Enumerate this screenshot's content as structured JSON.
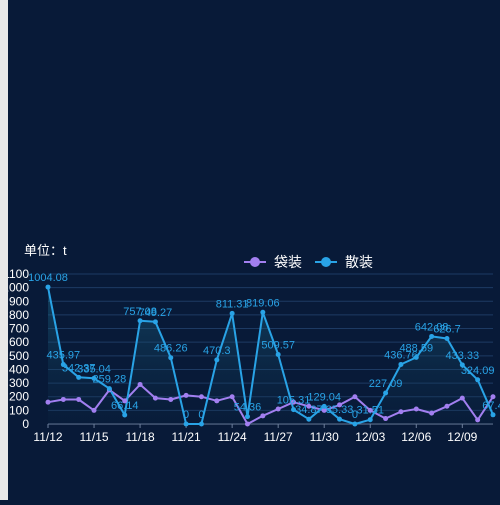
{
  "chart_data": {
    "type": "line",
    "unit_label": "单位：t",
    "ylim": [
      0,
      1100
    ],
    "yticks": [
      0,
      100,
      200,
      300,
      400,
      500,
      600,
      700,
      800,
      900,
      1000,
      1100
    ],
    "x": [
      "11/12",
      "11/13",
      "11/14",
      "11/15",
      "11/16",
      "11/17",
      "11/18",
      "11/19",
      "11/20",
      "11/21",
      "11/22",
      "11/23",
      "11/24",
      "11/25",
      "11/26",
      "11/27",
      "11/28",
      "11/29",
      "11/30",
      "12/01",
      "12/02",
      "12/03",
      "12/04",
      "12/05",
      "12/06",
      "12/07",
      "12/08",
      "12/09",
      "12/10",
      "12/11"
    ],
    "xtick_labels": [
      "11/12",
      "11/15",
      "11/18",
      "11/21",
      "11/24",
      "11/27",
      "11/30",
      "12/03",
      "12/06",
      "12/09"
    ],
    "legend_position": "top-center",
    "grid": true,
    "series": [
      {
        "name": "袋装",
        "color": "#a27ff0",
        "show_labels": false,
        "values": [
          160,
          180,
          180,
          100,
          250,
          170,
          290,
          190,
          180,
          210,
          200,
          170,
          200,
          0,
          60,
          110,
          160,
          130,
          100,
          140,
          200,
          100,
          40,
          90,
          110,
          80,
          130,
          190,
          30,
          200
        ]
      },
      {
        "name": "散装",
        "color": "#29a3e6",
        "show_labels": true,
        "values": [
          1004.08,
          435.97,
          342.37,
          335.04,
          259.28,
          66.14,
          757.08,
          749.27,
          486.26,
          0,
          0,
          470.3,
          811.31,
          54.36,
          819.06,
          509.57,
          105.31,
          34.87,
          129.04,
          35.33,
          0,
          31.51,
          227.09,
          436.76,
          488.59,
          642.08,
          626.7,
          433.33,
          324.09,
          67.4
        ],
        "labels": [
          "1004.08",
          "435.97",
          "342.37",
          "335.04",
          "259.28",
          "66.14",
          "757.08",
          "749.27",
          "486.26",
          "0",
          "0",
          "470.3",
          "811.31",
          "54.36",
          "819.06",
          "509.57",
          "105.31",
          "34.87",
          "129.04",
          "35.33",
          "0",
          "31.51",
          "227.09",
          "436.76",
          "488.59",
          "642.08",
          "626.7",
          "433.33",
          "324.09",
          "67.4"
        ]
      }
    ]
  }
}
